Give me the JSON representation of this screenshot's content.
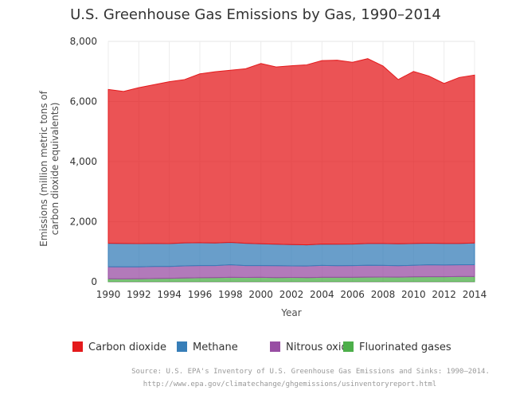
{
  "chart_data": {
    "type": "area",
    "stacked": true,
    "title": "U.S. Greenhouse Gas Emissions by Gas, 1990–2014",
    "xlabel": "Year",
    "ylabel_line1": "Emissions (million metric tons of",
    "ylabel_line2": "carbon dioxide equivalents)",
    "xlim": [
      1990,
      2014
    ],
    "ylim": [
      0,
      8000
    ],
    "grid": true,
    "legend_position": "bottom",
    "x": [
      1990,
      1991,
      1992,
      1993,
      1994,
      1995,
      1996,
      1997,
      1998,
      1999,
      2000,
      2001,
      2002,
      2003,
      2004,
      2005,
      2006,
      2007,
      2008,
      2009,
      2010,
      2011,
      2012,
      2013,
      2014
    ],
    "x_ticks": [
      1990,
      1992,
      1994,
      1996,
      1998,
      2000,
      2002,
      2004,
      2006,
      2008,
      2010,
      2012,
      2014
    ],
    "x_tick_labels": [
      "1990",
      "1992",
      "1994",
      "1996",
      "1998",
      "2000",
      "2002",
      "2004",
      "2006",
      "2008",
      "2010",
      "2012",
      "2014"
    ],
    "y_ticks": [
      0,
      2000,
      4000,
      6000,
      8000
    ],
    "y_tick_labels": [
      "0",
      "2,000",
      "4,000",
      "6,000",
      "8,000"
    ],
    "series": [
      {
        "name": "Fluorinated gases",
        "color": "#4daf4a",
        "values": [
          100,
          95,
          100,
          110,
          115,
          125,
          135,
          140,
          150,
          145,
          150,
          140,
          145,
          140,
          150,
          150,
          150,
          155,
          160,
          155,
          165,
          170,
          170,
          175,
          175
        ]
      },
      {
        "name": "Nitrous oxide",
        "color": "#984ea3",
        "values": [
          400,
          400,
          395,
          400,
          395,
          405,
          405,
          400,
          415,
          395,
          390,
          395,
          385,
          385,
          395,
          385,
          390,
          395,
          385,
          380,
          385,
          395,
          390,
          390,
          395
        ]
      },
      {
        "name": "Methane",
        "color": "#377eb8",
        "values": [
          780,
          780,
          775,
          765,
          760,
          765,
          760,
          750,
          745,
          740,
          725,
          715,
          710,
          705,
          710,
          715,
          715,
          725,
          730,
          730,
          725,
          720,
          715,
          710,
          720
        ]
      },
      {
        "name": "Carbon dioxide",
        "color": "#e41a1c",
        "values": [
          5120,
          5060,
          5190,
          5285,
          5390,
          5435,
          5620,
          5700,
          5730,
          5810,
          6000,
          5900,
          5950,
          5990,
          6105,
          6125,
          6050,
          6150,
          5905,
          5465,
          5725,
          5565,
          5325,
          5525,
          5590
        ]
      }
    ],
    "legend": [
      {
        "label": "Carbon dioxide",
        "color": "#e41a1c"
      },
      {
        "label": "Methane",
        "color": "#377eb8"
      },
      {
        "label": "Nitrous oxide",
        "color": "#984ea3"
      },
      {
        "label": "Fluorinated gases",
        "color": "#4daf4a"
      }
    ],
    "source_line1": "Source: U.S. EPA's Inventory of U.S. Greenhouse Gas Emissions and Sinks: 1990–2014.",
    "source_line2": "http://www.epa.gov/climatechange/ghgemissions/usinventoryreport.html"
  }
}
